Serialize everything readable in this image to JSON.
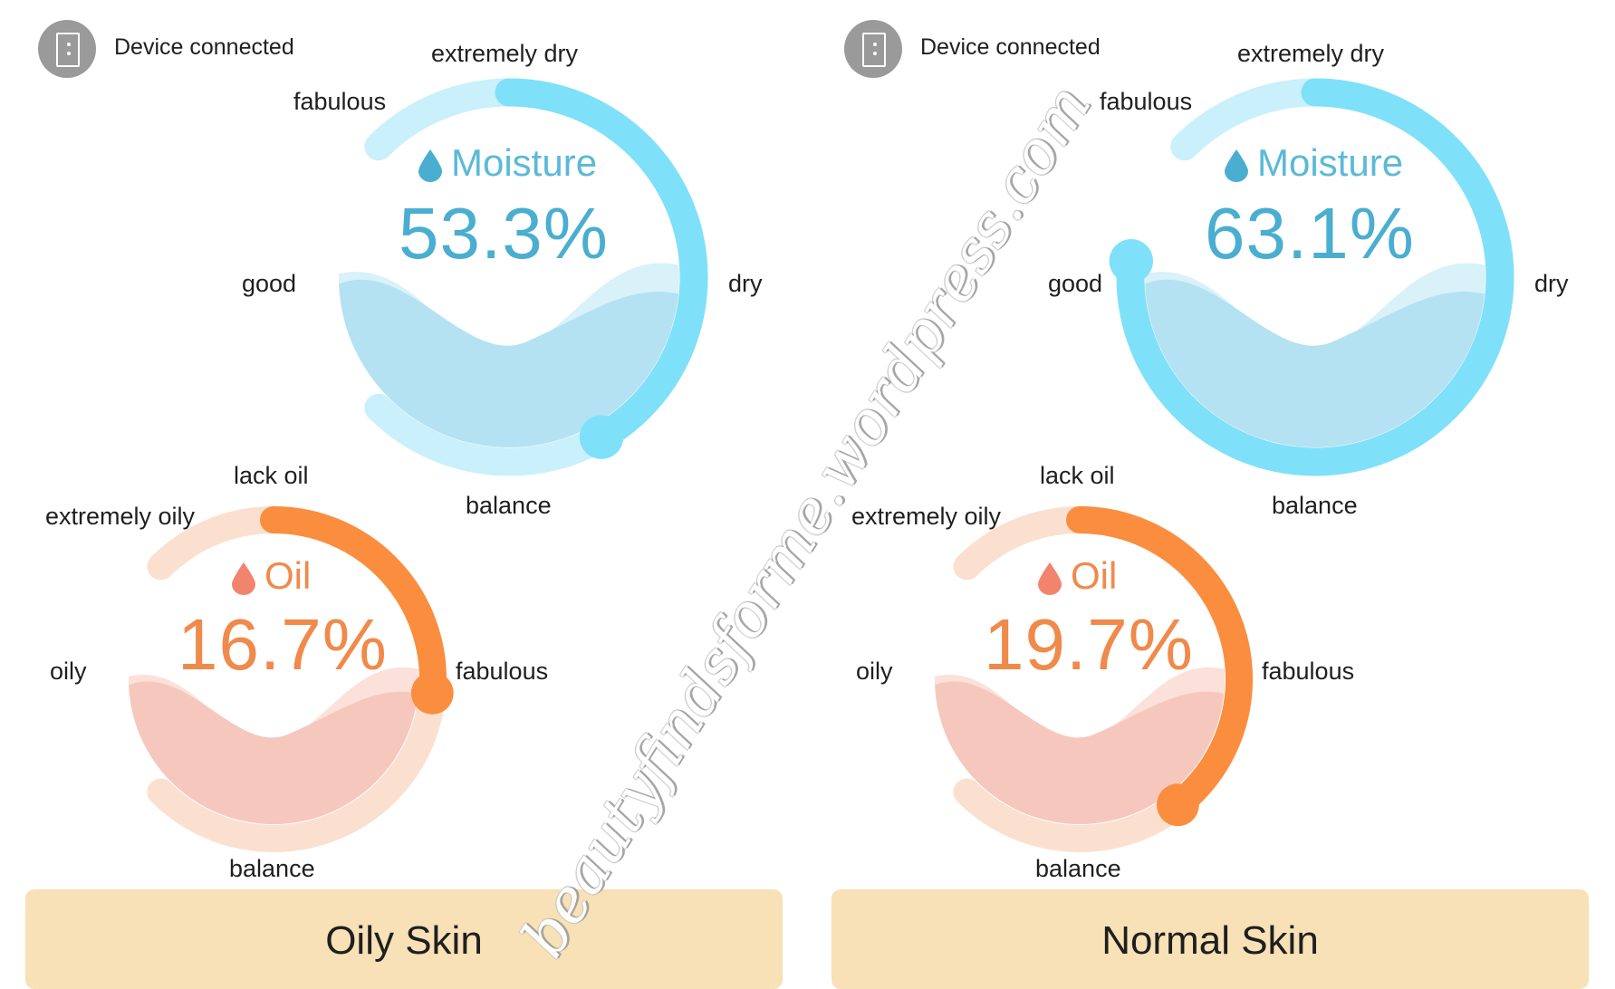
{
  "status": {
    "text": "Device connected",
    "icon": "phone-icon"
  },
  "colors": {
    "moisture_arc": "#7fe0fa",
    "moisture_track": "#c9f0fb",
    "moisture_fill": "#b4e2f2",
    "moisture_text": "#4aaed0",
    "oil_arc": "#fb8d3f",
    "oil_track": "#fbe0d0",
    "oil_fill": "#f6c8bd",
    "oil_text": "#f08a4b",
    "card": "#f8e1b6"
  },
  "moisture_labels": {
    "top": "extremely dry",
    "top_left": "fabulous",
    "left": "good",
    "right": "dry",
    "bottom": "balance"
  },
  "oil_labels": {
    "top": "lack oil",
    "top_left": "extremely oily",
    "left": "oily",
    "right": "fabulous",
    "bottom": "balance"
  },
  "panels": [
    {
      "moisture": {
        "title": "Moisture",
        "value": "53.3%",
        "level": 53.3,
        "icon": "water-drop-icon"
      },
      "oil": {
        "title": "Oil",
        "value": "16.7%",
        "level": 16.7,
        "icon": "oil-drop-icon"
      },
      "skin_type": "Oily Skin"
    },
    {
      "moisture": {
        "title": "Moisture",
        "value": "63.1%",
        "level": 63.1,
        "icon": "water-drop-icon"
      },
      "oil": {
        "title": "Oil",
        "value": "19.7%",
        "level": 19.7,
        "icon": "oil-drop-icon"
      },
      "skin_type": "Normal Skin"
    }
  ],
  "watermark": "beautyfindsforme.wordpress.com"
}
